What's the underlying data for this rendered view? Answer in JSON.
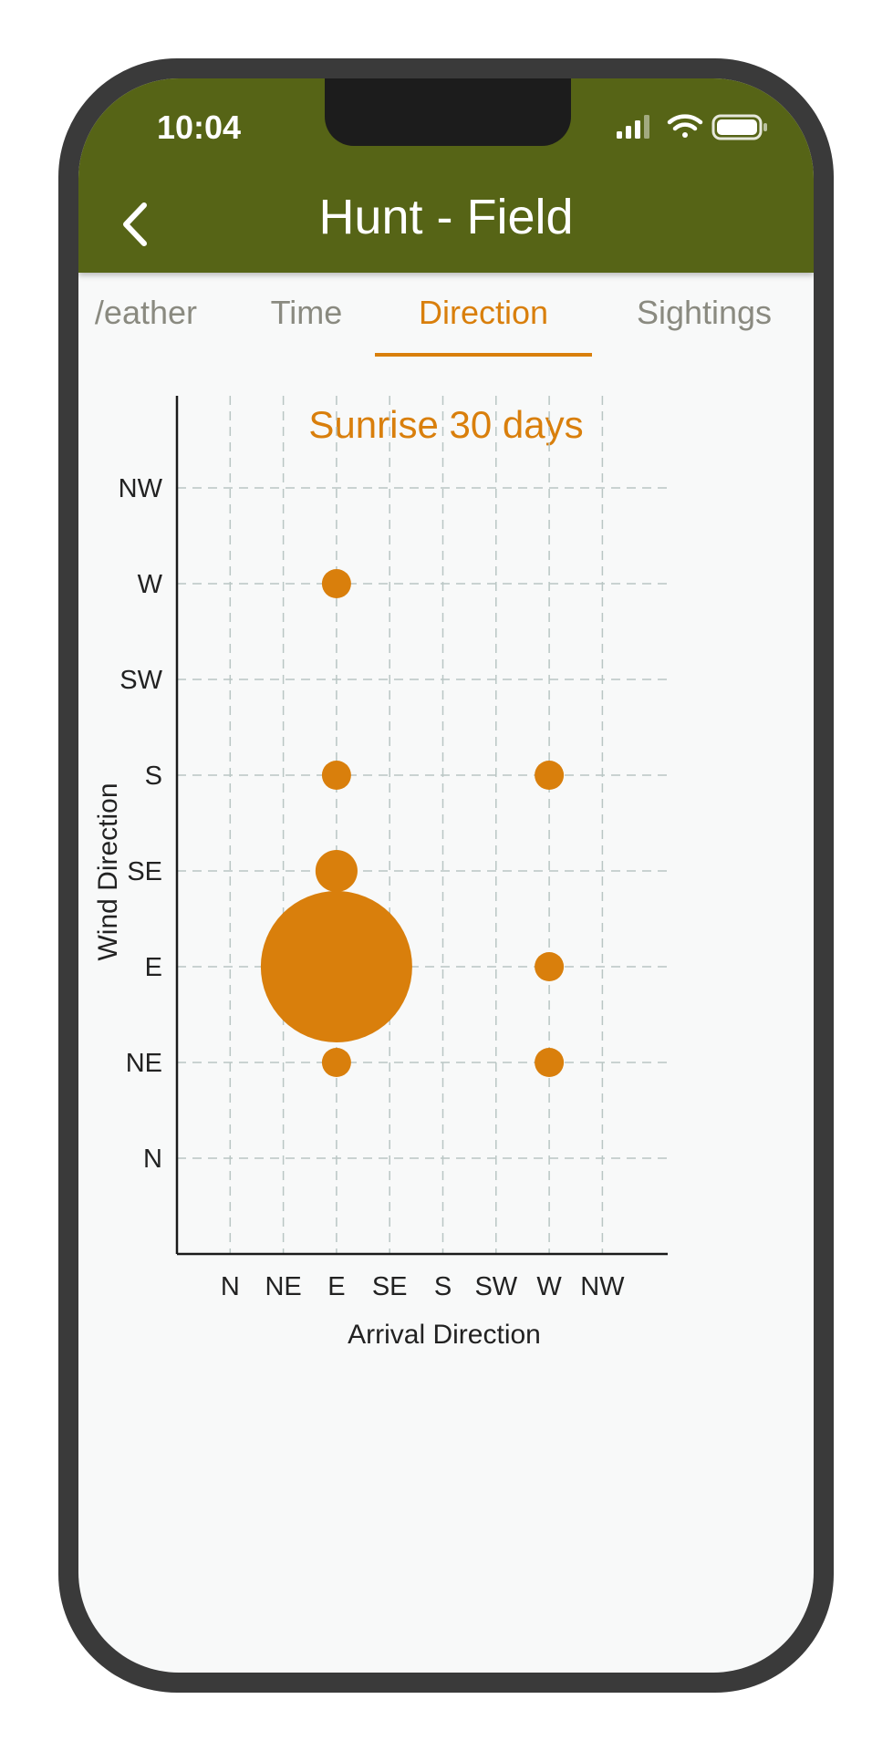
{
  "status": {
    "time": "10:04"
  },
  "header": {
    "title": "Hunt - Field",
    "back_icon": "chevron-left-icon",
    "background_color": "#566416"
  },
  "tabs": [
    {
      "label": "Weather",
      "shown": "/eather",
      "active": false
    },
    {
      "label": "Time",
      "shown": "Time",
      "active": false
    },
    {
      "label": "Direction",
      "shown": "Direction",
      "active": true
    },
    {
      "label": "Sightings",
      "shown": "Sightings",
      "active": false
    }
  ],
  "accent_color": "#d97f0c",
  "chart_data": {
    "type": "scatter",
    "variant": "bubble",
    "title": "Sunrise 30 days",
    "xlabel": "Arrival Direction",
    "ylabel": "Wind Direction",
    "x_categories": [
      "N",
      "NE",
      "E",
      "SE",
      "S",
      "SW",
      "W",
      "NW"
    ],
    "y_categories": [
      "N",
      "NE",
      "E",
      "SE",
      "S",
      "SW",
      "W",
      "NW"
    ],
    "grid": true,
    "legend": "none",
    "color": "#d97f0c",
    "points": [
      {
        "x": "E",
        "y": "W",
        "size": 1
      },
      {
        "x": "E",
        "y": "S",
        "size": 1
      },
      {
        "x": "W",
        "y": "S",
        "size": 1
      },
      {
        "x": "E",
        "y": "SE",
        "size": 3
      },
      {
        "x": "E",
        "y": "E",
        "size": 20
      },
      {
        "x": "W",
        "y": "E",
        "size": 1
      },
      {
        "x": "E",
        "y": "NE",
        "size": 1
      },
      {
        "x": "W",
        "y": "NE",
        "size": 1
      }
    ]
  }
}
